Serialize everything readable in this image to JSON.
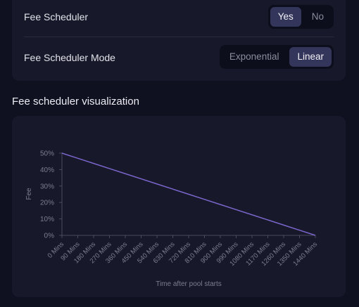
{
  "settings": {
    "fee_scheduler": {
      "label": "Fee Scheduler",
      "options": [
        "Yes",
        "No"
      ],
      "selected": "Yes"
    },
    "fee_scheduler_mode": {
      "label": "Fee Scheduler Mode",
      "options": [
        "Exponential",
        "Linear"
      ],
      "selected": "Linear"
    }
  },
  "visualization": {
    "title": "Fee scheduler visualization"
  },
  "chart_data": {
    "type": "line",
    "xlabel": "Time after pool starts",
    "ylabel": "Fee",
    "categories": [
      "0 Mins",
      "90 Mins",
      "180 Mins",
      "270 Mins",
      "360 Mins",
      "450 Mins",
      "540 Mins",
      "630 Mins",
      "720 Mins",
      "810 Mins",
      "900 Mins",
      "990 Mins",
      "1080 Mins",
      "1170 Mins",
      "1260 Mins",
      "1350 Mins",
      "1440 Mins"
    ],
    "y_ticks": [
      "0%",
      "10%",
      "20%",
      "30%",
      "40%",
      "50%"
    ],
    "ylim": [
      0,
      50
    ],
    "series": [
      {
        "values": [
          50,
          46.875,
          43.75,
          40.625,
          37.5,
          34.375,
          31.25,
          28.125,
          25,
          21.875,
          18.75,
          15.625,
          12.5,
          9.375,
          6.25,
          3.125,
          0
        ]
      }
    ],
    "colors": {
      "line": "#7a66cc"
    },
    "grid": false,
    "legend": false
  }
}
